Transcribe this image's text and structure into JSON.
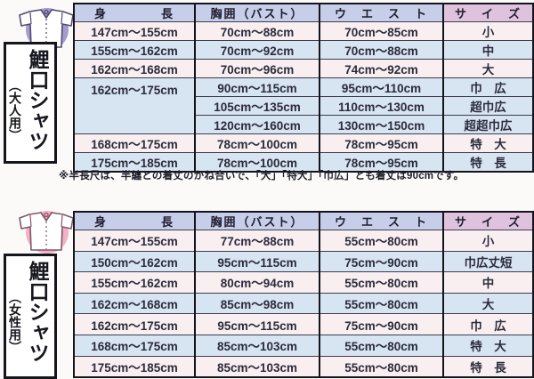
{
  "page": {
    "background": "#fbfaf9"
  },
  "colors": {
    "header_blue": "#c7cee9",
    "header_mauve": "#dfc3de",
    "row_pink": "#f9eff1",
    "row_blue": "#d7e4f2",
    "table_border": "#14141b",
    "adult_circle": "#a49bd1",
    "women_circle": "#f3b1c5",
    "adult_shirt_outline": "#524b6e",
    "women_shirt_outline": "#7e5668"
  },
  "sections": {
    "adult": {
      "label_main": "鯉口シャツ",
      "label_sub": "（大人用）",
      "icon": "koikuchi-shirt-icon",
      "icon_circle_color": "#a49bd1",
      "icon_outline_color": "#524b6e",
      "table": {
        "headers": [
          "身　　　　長",
          "胸囲（バスト）",
          "ウ　エ　ス　ト",
          "サ　イ　ズ"
        ],
        "header_tones": [
          "",
          "",
          "",
          "mauve"
        ],
        "rows": [
          {
            "tone": "pink",
            "cells": [
              {
                "t": "147cm〜155cm"
              },
              {
                "t": "70cm〜88cm"
              },
              {
                "t": "70cm〜85cm"
              },
              {
                "t": "小"
              }
            ]
          },
          {
            "tone": "blue",
            "cells": [
              {
                "t": "155cm〜162cm"
              },
              {
                "t": "70cm〜92cm"
              },
              {
                "t": "70cm〜88cm"
              },
              {
                "t": "中"
              }
            ]
          },
          {
            "tone": "pink",
            "cells": [
              {
                "t": "162cm〜168cm"
              },
              {
                "t": "70cm〜96cm"
              },
              {
                "t": "74cm〜92cm"
              },
              {
                "t": "大"
              }
            ]
          },
          {
            "tone": "blue",
            "cells": [
              {
                "t": "162cm〜175cm",
                "rowspan": 3
              },
              {
                "t": "90cm〜115cm"
              },
              {
                "t": "95cm〜110cm"
              },
              {
                "t": "巾　広"
              }
            ]
          },
          {
            "tone": "blue",
            "cells": [
              {
                "t": "105cm〜135cm"
              },
              {
                "t": "110cm〜130cm"
              },
              {
                "t": "超巾広"
              }
            ]
          },
          {
            "tone": "blue",
            "cells": [
              {
                "t": "120cm〜160cm"
              },
              {
                "t": "130cm〜150cm"
              },
              {
                "t": "超超巾広"
              }
            ]
          },
          {
            "tone": "pink",
            "cells": [
              {
                "t": "168cm〜175cm"
              },
              {
                "t": "78cm〜100cm"
              },
              {
                "t": "78cm〜95cm"
              },
              {
                "t": "特　大"
              }
            ]
          },
          {
            "tone": "blue",
            "cells": [
              {
                "t": "175cm〜185cm"
              },
              {
                "t": "78cm〜100cm"
              },
              {
                "t": "78cm〜95cm"
              },
              {
                "t": "特　長"
              }
            ]
          }
        ]
      }
    },
    "women": {
      "label_main": "鯉口シャツ",
      "label_sub": "（女性用）",
      "icon": "koikuchi-shirt-icon",
      "icon_circle_color": "#f3b1c5",
      "icon_outline_color": "#7e5668",
      "table": {
        "headers": [
          "身　　　　長",
          "胸囲（バスト）",
          "ウ　エ　ス　ト",
          "サ　イ　ズ"
        ],
        "header_tones": [
          "",
          "",
          "",
          "mauve"
        ],
        "rows": [
          {
            "tone": "pink",
            "cells": [
              {
                "t": "147cm〜155cm"
              },
              {
                "t": "77cm〜88cm"
              },
              {
                "t": "55cm〜80cm"
              },
              {
                "t": "小"
              }
            ]
          },
          {
            "tone": "blue",
            "cells": [
              {
                "t": "150cm〜162cm"
              },
              {
                "t": "95cm〜115cm"
              },
              {
                "t": "75cm〜90cm"
              },
              {
                "t": "巾広丈短"
              }
            ]
          },
          {
            "tone": "pink",
            "cells": [
              {
                "t": "155cm〜162cm"
              },
              {
                "t": "80cm〜94cm"
              },
              {
                "t": "55cm〜80cm"
              },
              {
                "t": "中"
              }
            ]
          },
          {
            "tone": "blue",
            "cells": [
              {
                "t": "162cm〜168cm"
              },
              {
                "t": "85cm〜98cm"
              },
              {
                "t": "55cm〜80cm"
              },
              {
                "t": "大"
              }
            ]
          },
          {
            "tone": "pink",
            "cells": [
              {
                "t": "162cm〜175cm"
              },
              {
                "t": "95cm〜115cm"
              },
              {
                "t": "75cm〜90cm"
              },
              {
                "t": "巾　広"
              }
            ]
          },
          {
            "tone": "blue",
            "cells": [
              {
                "t": "168cm〜175cm"
              },
              {
                "t": "85cm〜103cm"
              },
              {
                "t": "55cm〜80cm"
              },
              {
                "t": "特　大"
              }
            ]
          },
          {
            "tone": "pink",
            "cells": [
              {
                "t": "175cm〜185cm"
              },
              {
                "t": "85cm〜103cm"
              },
              {
                "t": "55cm〜80cm"
              },
              {
                "t": "特　長"
              }
            ]
          }
        ]
      }
    }
  },
  "footnote": "※半長尺は、半纏との着丈のかね合いで、「大」「特大」「巾広」とも着丈は90cmです。"
}
